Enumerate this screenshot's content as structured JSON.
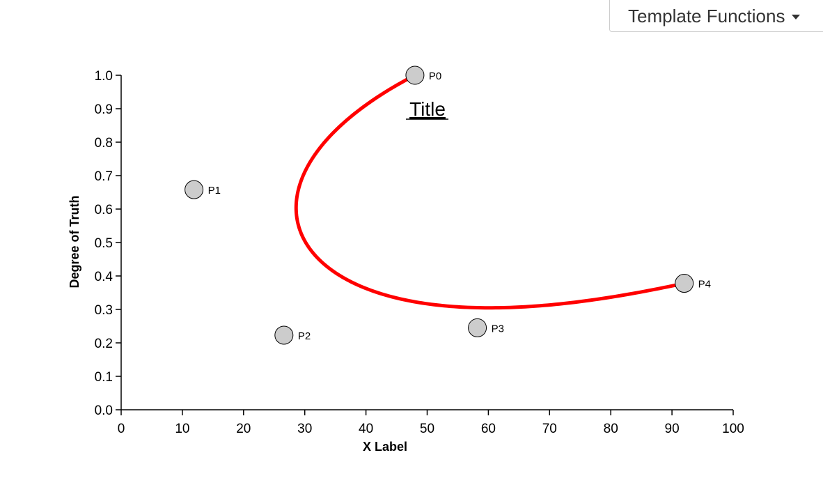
{
  "toolbar": {
    "dropdown_label": "Template Functions",
    "dropdown_icon": "caret-down-icon"
  },
  "chart_data": {
    "type": "line",
    "title": "Title",
    "xlabel": "X Label",
    "ylabel": "Degree of Truth",
    "xlim": [
      0,
      100
    ],
    "ylim": [
      0,
      1
    ],
    "x_ticks": [
      0,
      10,
      20,
      30,
      40,
      50,
      60,
      70,
      80,
      90,
      100
    ],
    "y_ticks": [
      "0.0",
      "0.1",
      "0.2",
      "0.3",
      "0.4",
      "0.5",
      "0.6",
      "0.7",
      "0.8",
      "0.9",
      "1.0"
    ],
    "grid": false,
    "curve": {
      "kind": "bezier",
      "color": "#ff0000"
    },
    "control_points": [
      {
        "label": "P0",
        "x": 48,
        "y": 1.0
      },
      {
        "label": "P1",
        "x": 11.9,
        "y": 0.658
      },
      {
        "label": "P2",
        "x": 26.6,
        "y": 0.223
      },
      {
        "label": "P3",
        "x": 58.2,
        "y": 0.245
      },
      {
        "label": "P4",
        "x": 92,
        "y": 0.378
      }
    ],
    "point_fill": "#cccccc"
  }
}
